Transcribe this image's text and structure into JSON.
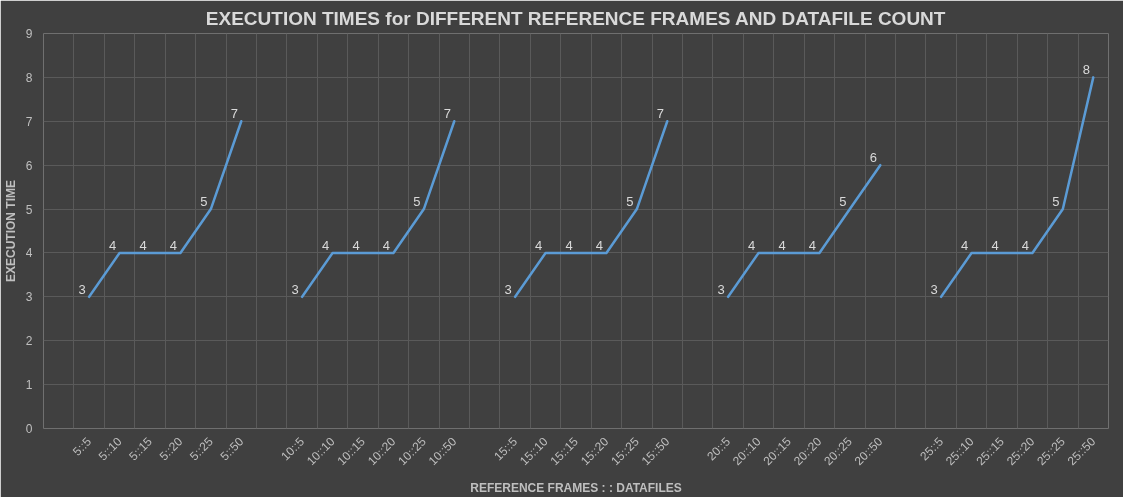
{
  "chart_data": {
    "type": "line",
    "title": "EXECUTION TIMES for DIFFERENT REFERENCE FRAMES AND DATAFILE COUNT",
    "xlabel": "REFERENCE FRAMES : : DATAFILES",
    "ylabel": "EXECUTION TIME",
    "categories": [
      null,
      "5::5",
      "5::10",
      "5::15",
      "5::20",
      "5::25",
      "5::50",
      null,
      "10::5",
      "10::10",
      "10::15",
      "10::20",
      "10::25",
      "10::50",
      null,
      "15::5",
      "15::10",
      "15::15",
      "15::20",
      "15::25",
      "15::50",
      null,
      "20::5",
      "20::10",
      "20::15",
      "20::20",
      "20::25",
      "20::50",
      null,
      "25::5",
      "25::10",
      "25::15",
      "25::20",
      "25::25",
      "25::50"
    ],
    "series": [
      {
        "color": "#5b9bd5",
        "values": [
          null,
          3,
          4,
          4,
          4,
          5,
          7,
          null,
          3,
          4,
          4,
          4,
          5,
          7,
          null,
          3,
          4,
          4,
          4,
          5,
          7,
          null,
          3,
          4,
          4,
          4,
          5,
          6,
          null,
          3,
          4,
          4,
          4,
          5,
          8
        ]
      }
    ],
    "ylim": [
      0,
      9
    ],
    "yticks": [
      0,
      1,
      2,
      3,
      4,
      5,
      6,
      7,
      8,
      9
    ],
    "grid": true,
    "data_labels": true,
    "line_style": "solid"
  }
}
